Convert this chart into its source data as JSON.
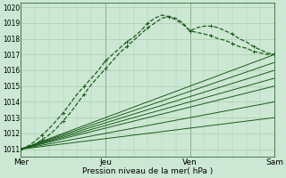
{
  "xlabel": "Pression niveau de la mer( hPa )",
  "ylim": [
    1010.5,
    1020.3
  ],
  "xlim": [
    0,
    108
  ],
  "yticks": [
    1011,
    1012,
    1013,
    1014,
    1015,
    1016,
    1017,
    1018,
    1019,
    1020
  ],
  "xtick_positions": [
    0,
    36,
    72,
    108
  ],
  "xtick_labels": [
    "Mer",
    "Jeu",
    "Ven",
    "Sam"
  ],
  "vline_positions": [
    36,
    72,
    108
  ],
  "bg_color": "#cce8d4",
  "grid_color": "#aaccaa",
  "line_color": "#1a5c1a",
  "series_dashed": [
    {
      "x": [
        0,
        3,
        6,
        9,
        12,
        15,
        18,
        21,
        24,
        27,
        30,
        33,
        36,
        39,
        42,
        45,
        48,
        51,
        54,
        57,
        60,
        63,
        66,
        69,
        72,
        75,
        78,
        81,
        84,
        87,
        90,
        93,
        96,
        99,
        102,
        105,
        108
      ],
      "y": [
        1011.0,
        1011.2,
        1011.5,
        1011.9,
        1012.3,
        1012.8,
        1013.3,
        1013.9,
        1014.5,
        1015.0,
        1015.5,
        1016.0,
        1016.6,
        1017.0,
        1017.4,
        1017.8,
        1018.1,
        1018.5,
        1019.0,
        1019.3,
        1019.5,
        1019.4,
        1019.2,
        1018.9,
        1018.5,
        1018.7,
        1018.8,
        1018.8,
        1018.7,
        1018.5,
        1018.3,
        1018.0,
        1017.8,
        1017.5,
        1017.3,
        1017.1,
        1017.0
      ]
    },
    {
      "x": [
        0,
        3,
        6,
        9,
        12,
        15,
        18,
        21,
        24,
        27,
        30,
        33,
        36,
        39,
        42,
        45,
        48,
        51,
        54,
        57,
        60,
        63,
        66,
        69,
        72,
        75,
        78,
        81,
        84,
        87,
        90,
        93,
        96,
        99,
        102,
        105,
        108
      ],
      "y": [
        1011.0,
        1011.1,
        1011.3,
        1011.6,
        1011.9,
        1012.3,
        1012.8,
        1013.3,
        1013.9,
        1014.5,
        1015.1,
        1015.6,
        1016.1,
        1016.6,
        1017.1,
        1017.5,
        1017.9,
        1018.3,
        1018.7,
        1019.0,
        1019.3,
        1019.4,
        1019.3,
        1019.0,
        1018.5,
        1018.4,
        1018.3,
        1018.2,
        1018.0,
        1017.9,
        1017.7,
        1017.5,
        1017.4,
        1017.2,
        1017.1,
        1017.0,
        1017.0
      ]
    }
  ],
  "series_straight": [
    {
      "x0": 0,
      "y0": 1011.0,
      "x1": 108,
      "y1": 1017.0
    },
    {
      "x0": 0,
      "y0": 1011.0,
      "x1": 108,
      "y1": 1016.5
    },
    {
      "x0": 0,
      "y0": 1011.0,
      "x1": 108,
      "y1": 1016.0
    },
    {
      "x0": 0,
      "y0": 1011.0,
      "x1": 108,
      "y1": 1015.5
    },
    {
      "x0": 0,
      "y0": 1011.0,
      "x1": 108,
      "y1": 1015.0
    },
    {
      "x0": 0,
      "y0": 1011.0,
      "x1": 108,
      "y1": 1014.0
    },
    {
      "x0": 0,
      "y0": 1011.0,
      "x1": 108,
      "y1": 1013.0
    }
  ],
  "lw_dashed": 0.9,
  "lw_straight": 0.7,
  "marker_size": 2.5,
  "marker_every": 3
}
